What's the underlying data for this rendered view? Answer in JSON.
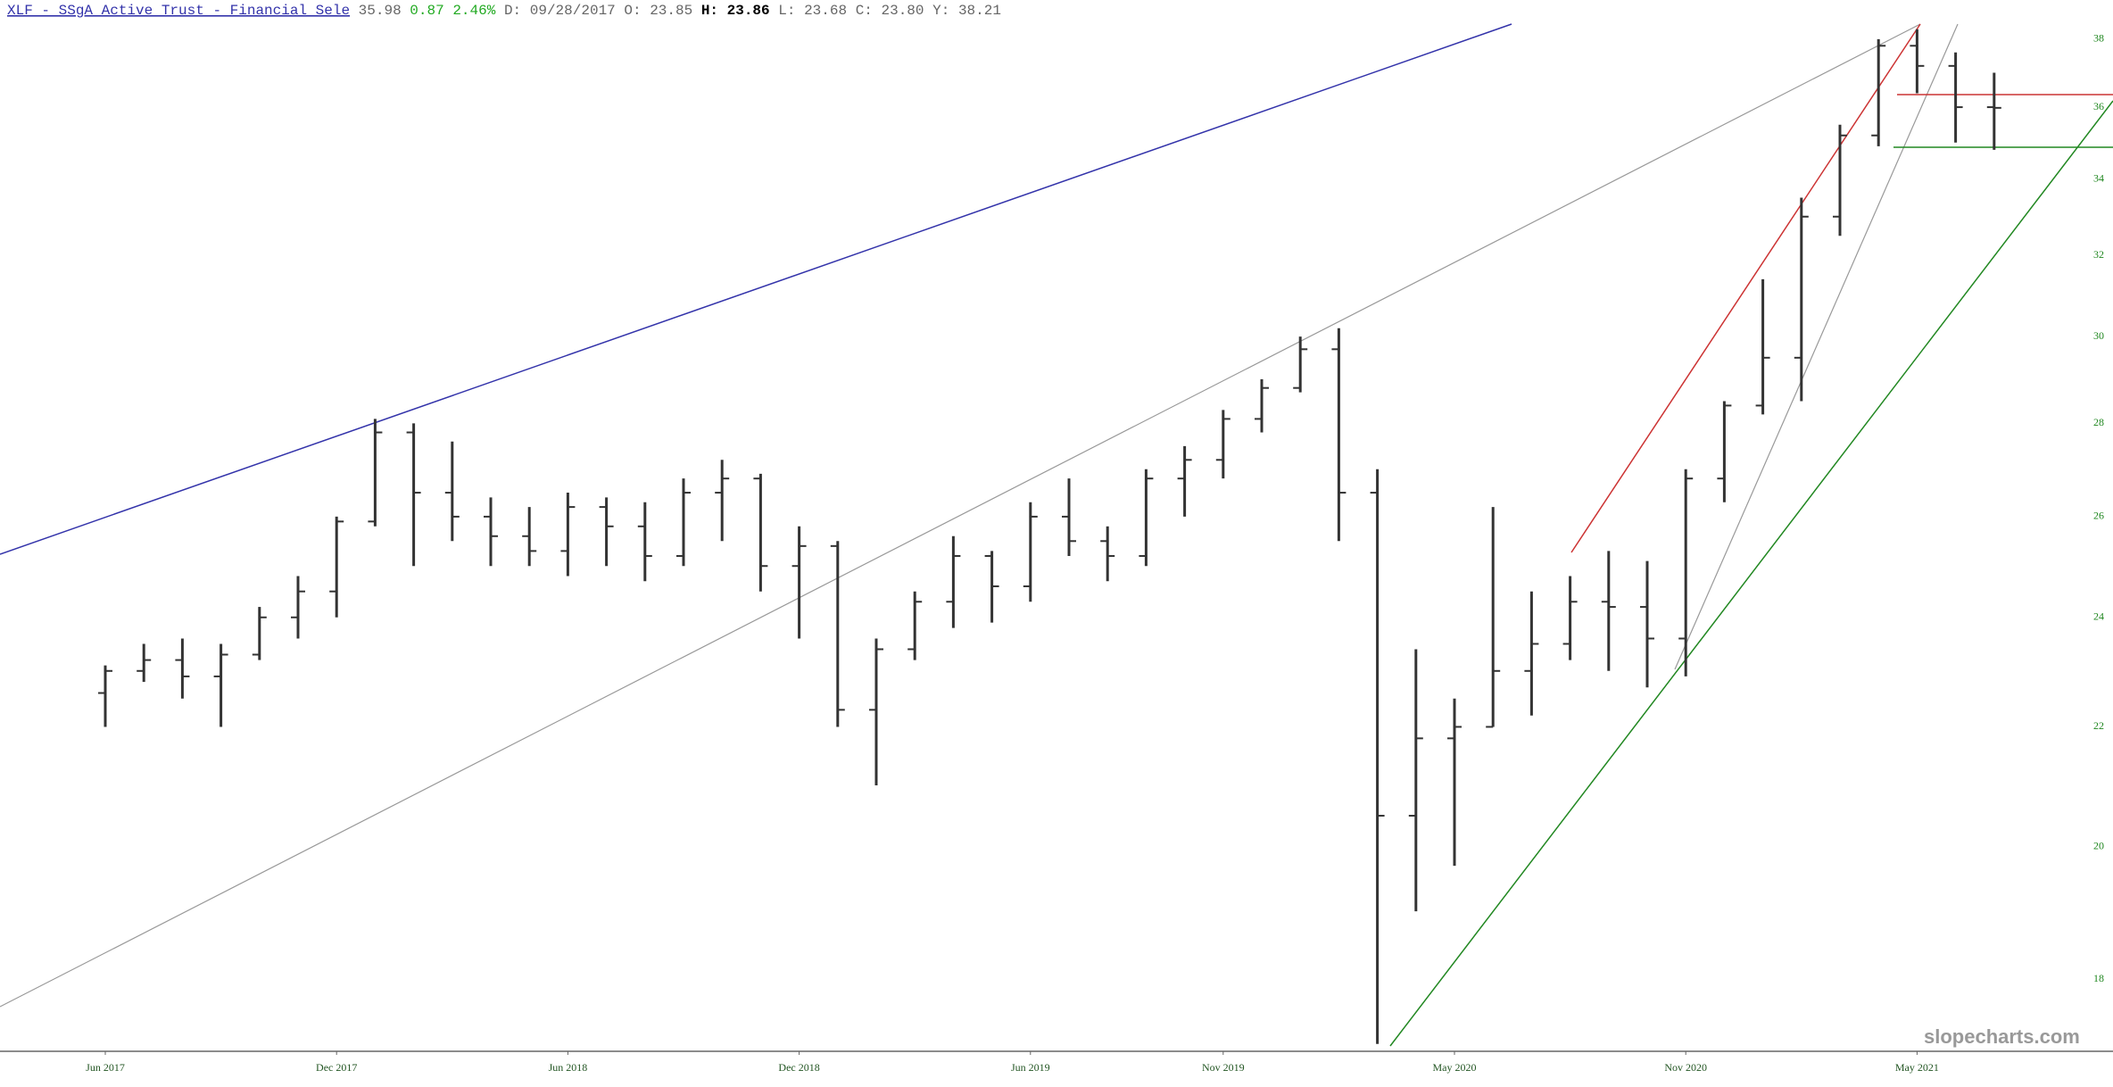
{
  "header": {
    "title": "XLF - SSgA Active Trust - Financial Sele",
    "last": "35.98",
    "change": "0.87",
    "change_pct": "2.46%",
    "fields": [
      {
        "label": "D:",
        "value": "09/28/2017"
      },
      {
        "label": "O:",
        "value": "23.85"
      },
      {
        "label": "H:",
        "value": "23.86"
      },
      {
        "label": "L:",
        "value": "23.68"
      },
      {
        "label": "C:",
        "value": "23.80"
      },
      {
        "label": "Y:",
        "value": "38.21"
      }
    ]
  },
  "watermark": "slopecharts.com",
  "chart_data": {
    "type": "ohlc",
    "color": "#333333",
    "log_scale": true,
    "x": [
      "2017-06",
      "2017-07",
      "2017-08",
      "2017-09",
      "2017-10",
      "2017-11",
      "2017-12",
      "2018-01",
      "2018-02",
      "2018-03",
      "2018-04",
      "2018-05",
      "2018-06",
      "2018-07",
      "2018-08",
      "2018-09",
      "2018-10",
      "2018-11",
      "2018-12",
      "2019-01",
      "2019-02",
      "2019-03",
      "2019-04",
      "2019-05",
      "2019-06",
      "2019-07",
      "2019-08",
      "2019-09",
      "2019-10",
      "2019-11",
      "2019-12",
      "2020-01",
      "2020-02",
      "2020-03",
      "2020-04",
      "2020-05",
      "2020-06",
      "2020-07",
      "2020-08",
      "2020-09",
      "2020-10",
      "2020-11",
      "2020-12",
      "2021-01",
      "2021-02",
      "2021-03",
      "2021-04",
      "2021-05",
      "2021-06",
      "2021-07"
    ],
    "open": [
      22.6,
      23.0,
      23.2,
      22.9,
      23.3,
      24.0,
      24.5,
      25.9,
      27.8,
      26.5,
      26.0,
      25.6,
      25.3,
      26.2,
      25.8,
      25.2,
      26.5,
      26.8,
      25.0,
      25.4,
      22.3,
      23.4,
      24.3,
      25.2,
      24.6,
      26.0,
      25.5,
      25.2,
      26.8,
      27.2,
      28.1,
      28.8,
      29.7,
      26.5,
      20.5,
      21.8,
      22.0,
      23.0,
      23.5,
      24.3,
      24.2,
      23.6,
      26.8,
      28.4,
      29.5,
      33.0,
      35.2,
      37.8,
      37.2,
      36.0
    ],
    "high": [
      23.1,
      23.5,
      23.6,
      23.5,
      24.2,
      24.8,
      26.0,
      28.1,
      28.0,
      27.6,
      26.4,
      26.2,
      26.5,
      26.4,
      26.3,
      26.8,
      27.2,
      26.9,
      25.8,
      25.5,
      23.6,
      24.5,
      25.6,
      25.3,
      26.3,
      26.8,
      25.8,
      27.0,
      27.5,
      28.3,
      29.0,
      30.0,
      30.2,
      27.0,
      23.4,
      22.5,
      26.2,
      24.5,
      24.8,
      25.3,
      25.1,
      27.0,
      28.5,
      31.4,
      33.5,
      35.5,
      38.0,
      38.3,
      37.6,
      37.0
    ],
    "low": [
      22.0,
      22.8,
      22.5,
      22.0,
      23.2,
      23.6,
      24.0,
      25.8,
      25.0,
      25.5,
      25.0,
      25.0,
      24.8,
      25.0,
      24.7,
      25.0,
      25.5,
      24.5,
      23.6,
      22.0,
      21.0,
      23.2,
      23.8,
      23.9,
      24.3,
      25.2,
      24.7,
      25.0,
      26.0,
      26.8,
      27.8,
      28.7,
      25.5,
      17.1,
      19.0,
      19.7,
      22.0,
      22.2,
      23.2,
      23.0,
      22.7,
      22.9,
      26.3,
      28.2,
      28.5,
      32.5,
      34.9,
      36.4,
      35.0,
      34.8
    ],
    "close": [
      23.0,
      23.2,
      22.9,
      23.3,
      24.0,
      24.5,
      25.9,
      27.8,
      26.5,
      26.0,
      25.6,
      25.3,
      26.2,
      25.8,
      25.2,
      26.5,
      26.8,
      25.0,
      25.4,
      22.3,
      23.4,
      24.3,
      25.2,
      24.6,
      26.0,
      25.5,
      25.2,
      26.8,
      27.2,
      28.1,
      28.8,
      29.7,
      26.5,
      20.5,
      21.8,
      22.0,
      23.0,
      23.5,
      24.3,
      24.2,
      23.6,
      26.8,
      28.4,
      29.5,
      33.0,
      35.2,
      37.8,
      37.2,
      36.0,
      35.98
    ],
    "ylim": [
      17,
      39.2
    ],
    "yticks": [
      18,
      20,
      22,
      24,
      26,
      28,
      30,
      32,
      34,
      36,
      38
    ],
    "xticks": [
      {
        "value": "2017-06",
        "label": "Jun 2017"
      },
      {
        "value": "2017-12",
        "label": "Dec 2017"
      },
      {
        "value": "2018-06",
        "label": "Jun 2018"
      },
      {
        "value": "2018-12",
        "label": "Dec 2018"
      },
      {
        "value": "2019-06",
        "label": "Jun 2019"
      },
      {
        "value": "2019-11",
        "label": "Nov 2019"
      },
      {
        "value": "2020-05",
        "label": "May 2020"
      },
      {
        "value": "2020-11",
        "label": "Nov 2020"
      },
      {
        "value": "2021-05",
        "label": "May 2021"
      }
    ]
  }
}
